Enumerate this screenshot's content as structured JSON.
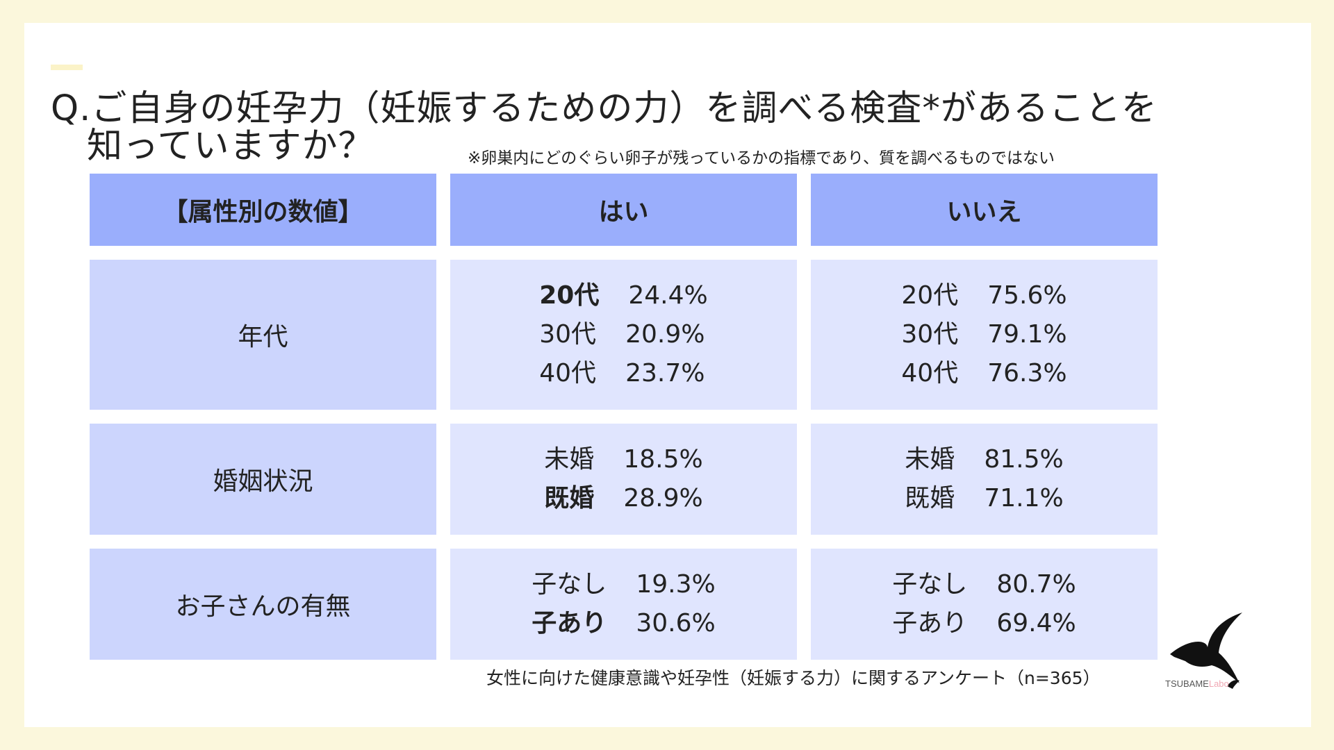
{
  "title": {
    "line1": "Q.ご自身の妊孕力（妊娠するための力）を調べる検査*があることを",
    "line2": "知っていますか？"
  },
  "note": "※卵巣内にどのぐらい卵子が残っているかの指標であり、質を調べるものではない",
  "table": {
    "headers": [
      "【属性別の数値】",
      "はい",
      "いいえ"
    ],
    "rows": [
      {
        "label": "年代",
        "yes": [
          {
            "key": "20代",
            "value": "24.4%"
          },
          {
            "key": "30代",
            "value": "20.9%"
          },
          {
            "key": "40代",
            "value": "23.7%"
          }
        ],
        "no": [
          {
            "key": "20代",
            "value": "75.6%"
          },
          {
            "key": "30代",
            "value": "79.1%"
          },
          {
            "key": "40代",
            "value": "76.3%"
          }
        ]
      },
      {
        "label": "婚姻状況",
        "yes": [
          {
            "key": "未婚",
            "value": "18.5%"
          },
          {
            "key": "既婚",
            "value": "28.9%"
          }
        ],
        "no": [
          {
            "key": "未婚",
            "value": "81.5%"
          },
          {
            "key": "既婚",
            "value": "71.1%"
          }
        ]
      },
      {
        "label": "お子さんの有無",
        "yes": [
          {
            "key": "子なし",
            "value": "19.3%"
          },
          {
            "key": "子あり",
            "value": "30.6%"
          }
        ],
        "no": [
          {
            "key": "子なし",
            "value": "80.7%"
          },
          {
            "key": "子あり",
            "value": "69.4%"
          }
        ]
      }
    ]
  },
  "footer": "女性に向けた健康意識や妊孕性（妊娠する力）に関するアンケート（n=365）",
  "logo": {
    "brand": "TSUBAME",
    "suffix": "Labo",
    "icon": "swallow-icon"
  },
  "colors": {
    "header": "#9aaefc",
    "label_cell": "#ccd5fd",
    "value_cell": "#e0e5fe",
    "background": "#fbf7dc"
  }
}
